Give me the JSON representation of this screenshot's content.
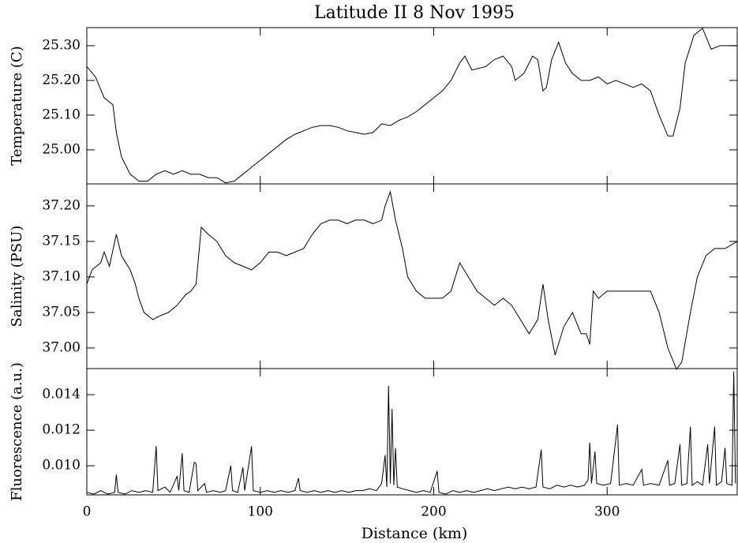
{
  "chart_data": [
    {
      "type": "line",
      "title": "Latitude II 8 Nov 1995",
      "ylabel": "Temperature (C)",
      "color": "#000000",
      "x": [
        0,
        5,
        10,
        15,
        17,
        20,
        25,
        30,
        35,
        40,
        45,
        50,
        55,
        60,
        65,
        70,
        75,
        80,
        85,
        90,
        95,
        100,
        105,
        110,
        115,
        120,
        125,
        130,
        135,
        140,
        145,
        150,
        155,
        160,
        165,
        170,
        175,
        180,
        185,
        190,
        195,
        200,
        205,
        210,
        215,
        218,
        222,
        230,
        235,
        240,
        245,
        247,
        252,
        257,
        260,
        263,
        265,
        268,
        272,
        276,
        280,
        285,
        290,
        295,
        300,
        305,
        310,
        315,
        320,
        325,
        330,
        335,
        338,
        342,
        345,
        350,
        355,
        360,
        365,
        370,
        375
      ],
      "values": [
        25.24,
        25.21,
        25.15,
        25.13,
        25.05,
        24.98,
        24.93,
        24.91,
        24.91,
        24.93,
        24.94,
        24.93,
        24.94,
        24.93,
        24.93,
        24.92,
        24.92,
        24.905,
        24.91,
        24.93,
        24.95,
        24.97,
        24.99,
        25.01,
        25.03,
        25.045,
        25.055,
        25.065,
        25.07,
        25.07,
        25.065,
        25.055,
        25.05,
        25.045,
        25.05,
        25.075,
        25.07,
        25.085,
        25.095,
        25.11,
        25.13,
        25.15,
        25.17,
        25.2,
        25.25,
        25.27,
        25.23,
        25.24,
        25.26,
        25.27,
        25.24,
        25.2,
        25.22,
        25.27,
        25.26,
        25.17,
        25.18,
        25.26,
        25.31,
        25.25,
        25.22,
        25.2,
        25.2,
        25.21,
        25.19,
        25.2,
        25.19,
        25.18,
        25.19,
        25.17,
        25.1,
        25.04,
        25.04,
        25.12,
        25.25,
        25.33,
        25.35,
        25.29,
        25.3,
        25.3,
        25.3
      ],
      "xlim": [
        0,
        375
      ],
      "ylim": [
        24.902,
        25.352
      ],
      "yticks": [
        {
          "value": 25.0,
          "label": "25.00"
        },
        {
          "value": 25.1,
          "label": "25.10"
        },
        {
          "value": 25.2,
          "label": "25.20"
        },
        {
          "value": 25.3,
          "label": "25.30"
        }
      ]
    },
    {
      "type": "line",
      "ylabel": "Salinity (PSU)",
      "color": "#000000",
      "x": [
        0,
        3,
        8,
        10,
        13,
        17,
        20,
        25,
        28,
        30,
        33,
        38,
        42,
        47,
        52,
        57,
        60,
        63,
        66,
        70,
        75,
        80,
        85,
        90,
        95,
        100,
        105,
        110,
        115,
        120,
        125,
        130,
        135,
        140,
        145,
        150,
        155,
        160,
        165,
        170,
        172,
        175,
        178,
        182,
        185,
        190,
        195,
        200,
        205,
        210,
        215,
        220,
        225,
        230,
        235,
        240,
        245,
        250,
        255,
        260,
        263,
        266,
        270,
        275,
        280,
        285,
        288,
        290,
        292,
        295,
        300,
        305,
        310,
        315,
        320,
        325,
        330,
        335,
        340,
        343,
        348,
        352,
        357,
        362,
        368,
        375
      ],
      "values": [
        37.09,
        37.11,
        37.12,
        37.135,
        37.115,
        37.16,
        37.13,
        37.11,
        37.09,
        37.07,
        37.05,
        37.04,
        37.045,
        37.05,
        37.06,
        37.075,
        37.08,
        37.09,
        37.17,
        37.16,
        37.15,
        37.13,
        37.12,
        37.115,
        37.11,
        37.12,
        37.135,
        37.135,
        37.13,
        37.135,
        37.14,
        37.16,
        37.175,
        37.18,
        37.18,
        37.175,
        37.18,
        37.18,
        37.175,
        37.18,
        37.2,
        37.22,
        37.18,
        37.14,
        37.1,
        37.08,
        37.07,
        37.07,
        37.07,
        37.08,
        37.12,
        37.1,
        37.08,
        37.07,
        37.06,
        37.07,
        37.06,
        37.04,
        37.02,
        37.04,
        37.09,
        37.04,
        36.99,
        37.03,
        37.05,
        37.02,
        37.02,
        37.005,
        37.08,
        37.07,
        37.08,
        37.08,
        37.08,
        37.08,
        37.08,
        37.08,
        37.05,
        37.0,
        36.97,
        36.98,
        37.05,
        37.1,
        37.13,
        37.14,
        37.14,
        37.15
      ],
      "xlim": [
        0,
        375
      ],
      "ylim": [
        36.971,
        37.231
      ],
      "yticks": [
        {
          "value": 37.0,
          "label": "37.00"
        },
        {
          "value": 37.05,
          "label": "37.05"
        },
        {
          "value": 37.1,
          "label": "37.10"
        },
        {
          "value": 37.15,
          "label": "37.15"
        },
        {
          "value": 37.2,
          "label": "37.20"
        }
      ]
    },
    {
      "type": "line",
      "ylabel": "Fluorescence (a.u.)",
      "xlabel": "Distance (km)",
      "color": "#000000",
      "x": [
        0,
        4,
        8,
        12,
        16,
        17,
        18,
        22,
        26,
        30,
        34,
        38,
        40,
        41,
        45,
        48,
        52,
        53,
        55,
        56,
        59,
        62,
        63,
        64,
        68,
        69,
        73,
        77,
        80,
        83,
        84,
        87,
        90,
        91,
        95,
        96,
        100,
        104,
        108,
        112,
        116,
        120,
        122,
        123,
        127,
        131,
        135,
        139,
        143,
        147,
        151,
        155,
        159,
        163,
        167,
        170,
        172,
        173,
        174,
        175,
        176,
        177,
        178,
        179,
        182,
        186,
        190,
        194,
        198,
        202,
        203,
        207,
        211,
        215,
        219,
        223,
        227,
        231,
        235,
        239,
        243,
        247,
        251,
        255,
        259,
        262,
        263,
        267,
        271,
        275,
        279,
        283,
        287,
        289,
        290,
        291,
        293,
        294,
        298,
        302,
        306,
        307,
        311,
        315,
        320,
        321,
        325,
        330,
        335,
        336,
        339,
        342,
        343,
        346,
        348,
        349,
        352,
        355,
        358,
        359,
        362,
        363,
        366,
        368,
        369,
        372,
        373,
        374
      ],
      "values": [
        0.0085,
        0.0084,
        0.0086,
        0.0084,
        0.0085,
        0.0095,
        0.0085,
        0.0084,
        0.0086,
        0.0085,
        0.0086,
        0.0085,
        0.0111,
        0.0086,
        0.0088,
        0.0085,
        0.0094,
        0.0086,
        0.0107,
        0.0086,
        0.0085,
        0.0102,
        0.0101,
        0.0086,
        0.009,
        0.0085,
        0.0086,
        0.0085,
        0.0086,
        0.01,
        0.0086,
        0.0085,
        0.0099,
        0.0086,
        0.0111,
        0.0086,
        0.0085,
        0.0086,
        0.0085,
        0.0086,
        0.0085,
        0.0086,
        0.0093,
        0.0086,
        0.0085,
        0.0086,
        0.0085,
        0.0086,
        0.0085,
        0.0086,
        0.0085,
        0.0086,
        0.0086,
        0.0087,
        0.0086,
        0.009,
        0.0106,
        0.0088,
        0.0145,
        0.009,
        0.0132,
        0.0089,
        0.011,
        0.0088,
        0.0087,
        0.0086,
        0.0085,
        0.0086,
        0.0085,
        0.0097,
        0.0085,
        0.0084,
        0.0086,
        0.0085,
        0.0086,
        0.0085,
        0.0086,
        0.0087,
        0.0086,
        0.0087,
        0.0088,
        0.0087,
        0.0088,
        0.0087,
        0.0088,
        0.0109,
        0.0088,
        0.0087,
        0.0089,
        0.0088,
        0.0089,
        0.0088,
        0.0089,
        0.0092,
        0.0113,
        0.009,
        0.0108,
        0.009,
        0.0089,
        0.009,
        0.0123,
        0.0089,
        0.009,
        0.0089,
        0.0098,
        0.0089,
        0.009,
        0.0089,
        0.0103,
        0.0089,
        0.009,
        0.0112,
        0.0089,
        0.009,
        0.0122,
        0.0089,
        0.0091,
        0.0089,
        0.0112,
        0.009,
        0.0122,
        0.0089,
        0.0091,
        0.011,
        0.009,
        0.0089,
        0.0153,
        0.009
      ],
      "xlim": [
        0,
        375
      ],
      "ylim": [
        0.00836,
        0.01547
      ],
      "xticks": [
        0,
        100,
        200,
        300
      ],
      "yticks": [
        {
          "value": 0.01,
          "label": "0.010"
        },
        0.012,
        0.014
      ]
    }
  ]
}
